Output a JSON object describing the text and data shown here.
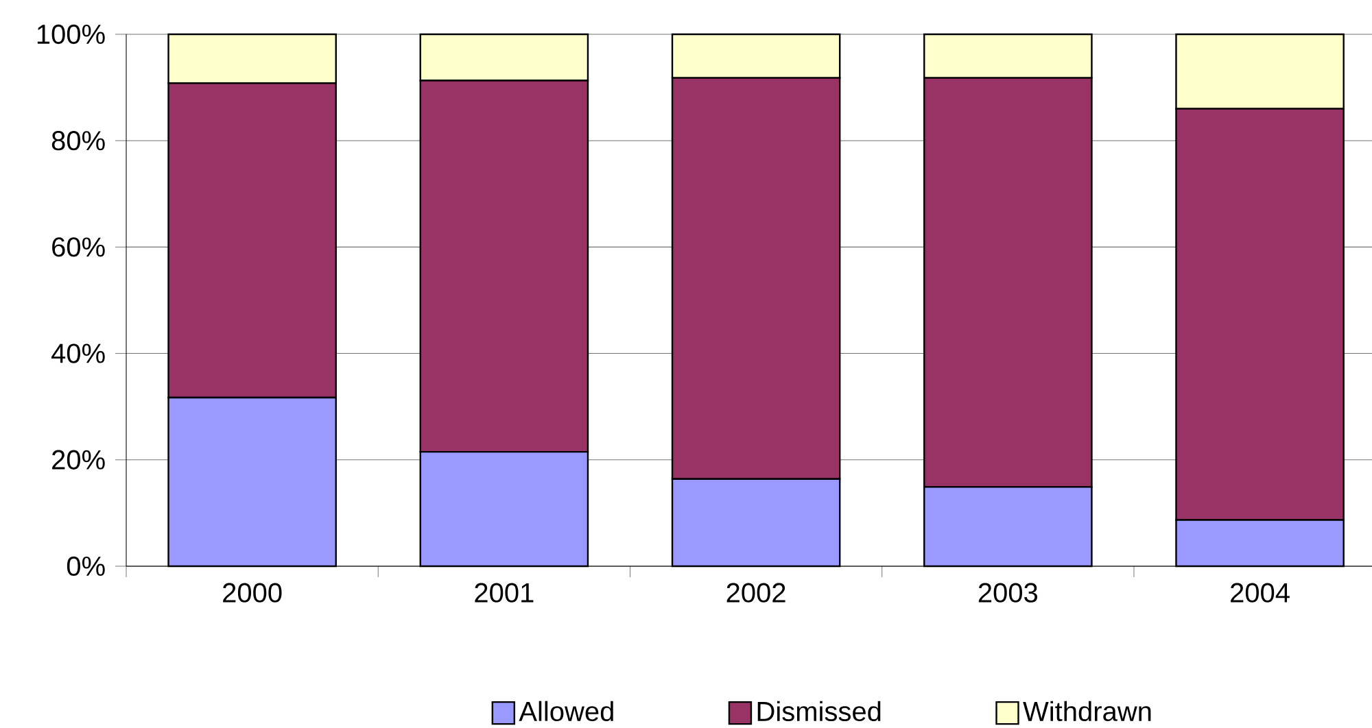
{
  "chart_data": {
    "type": "bar",
    "stacked": true,
    "categories": [
      "2000",
      "2001",
      "2002",
      "2003",
      "2004"
    ],
    "series": [
      {
        "name": "Allowed",
        "color": "#9999ff",
        "values": [
          31.7,
          21.5,
          16.4,
          14.9,
          8.7
        ]
      },
      {
        "name": "Dismissed",
        "color": "#993366",
        "values": [
          59.1,
          69.8,
          75.4,
          76.9,
          77.3
        ]
      },
      {
        "name": "Withdrawn",
        "color": "#ffffcc",
        "values": [
          9.2,
          8.7,
          8.2,
          8.2,
          14.0
        ]
      }
    ],
    "ylim": [
      0,
      100
    ],
    "yticks": [
      {
        "value": 0,
        "label": "0%"
      },
      {
        "value": 20,
        "label": "20%"
      },
      {
        "value": 40,
        "label": "40%"
      },
      {
        "value": 60,
        "label": "60%"
      },
      {
        "value": 80,
        "label": "80%"
      },
      {
        "value": 100,
        "label": "100%"
      }
    ],
    "grid": "y",
    "legend": "bottom"
  }
}
